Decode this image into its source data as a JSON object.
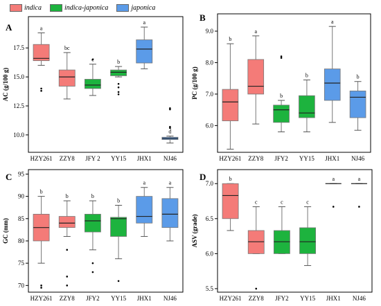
{
  "legend": {
    "items": [
      {
        "label": "indica",
        "color": "#F47B78"
      },
      {
        "label": "indica-japonica",
        "color": "#1DB33E"
      },
      {
        "label": "japonica",
        "color": "#5B9BE8"
      }
    ]
  },
  "chart_data": [
    {
      "type": "box",
      "panel": "A",
      "ylabel": "AC (g/100 g)",
      "ylim": [
        8.5,
        20.2
      ],
      "yticks": [
        10.0,
        12.5,
        15.0,
        17.5
      ],
      "ytick_labels": [
        "10.0",
        "12.5",
        "15.0",
        "17.5"
      ],
      "categories": [
        "HZY261",
        "ZZY8",
        "JFY 2",
        "YY15",
        "JHX1",
        "NJ46"
      ],
      "groups": [
        "indica",
        "indica",
        "indica-japonica",
        "indica-japonica",
        "japonica",
        "japonica"
      ],
      "boxes": [
        {
          "min": 16.0,
          "q1": 16.4,
          "median": 16.6,
          "q3": 17.8,
          "max": 18.8,
          "outliers": [
            14.0,
            13.8
          ]
        },
        {
          "min": 13.1,
          "q1": 14.2,
          "median": 15.0,
          "q3": 15.6,
          "max": 17.1,
          "outliers": []
        },
        {
          "min": 13.4,
          "q1": 14.0,
          "median": 14.3,
          "q3": 14.8,
          "max": 16.1,
          "outliers": [
            16.5
          ]
        },
        {
          "min": 15.0,
          "q1": 15.1,
          "median": 15.4,
          "q3": 15.6,
          "max": 15.9,
          "outliers": [
            14.4,
            14.1,
            13.7,
            13.5
          ]
        },
        {
          "min": 15.7,
          "q1": 16.2,
          "median": 17.4,
          "q3": 18.2,
          "max": 19.3,
          "outliers": []
        },
        {
          "min": 9.3,
          "q1": 9.6,
          "median": 9.7,
          "q3": 9.8,
          "max": 9.9,
          "outliers": [
            12.3,
            12.2,
            10.7,
            10.6
          ]
        }
      ],
      "letters": [
        "a",
        "bc",
        "c",
        "b",
        "a",
        "d"
      ]
    },
    {
      "type": "box",
      "panel": "B",
      "ylabel": "PC (g/100 g)",
      "ylim": [
        5.15,
        9.55
      ],
      "yticks": [
        6.0,
        7.0,
        8.0,
        9.0
      ],
      "ytick_labels": [
        "6.0",
        "7.0",
        "8.0",
        "9.0"
      ],
      "categories": [
        "HZY261",
        "ZZY8",
        "JFY2",
        "YY15",
        "JHX1",
        "NJ46"
      ],
      "groups": [
        "indica",
        "indica",
        "indica-japonica",
        "indica-japonica",
        "japonica",
        "japonica"
      ],
      "boxes": [
        {
          "min": 5.25,
          "q1": 6.15,
          "median": 6.75,
          "q3": 7.15,
          "max": 8.6,
          "outliers": []
        },
        {
          "min": 6.05,
          "q1": 7.0,
          "median": 7.25,
          "q3": 8.1,
          "max": 8.85,
          "outliers": []
        },
        {
          "min": 5.8,
          "q1": 6.1,
          "median": 6.5,
          "q3": 6.65,
          "max": 6.8,
          "outliers": [
            8.2,
            8.15
          ]
        },
        {
          "min": 5.8,
          "q1": 6.25,
          "median": 6.4,
          "q3": 6.95,
          "max": 7.45,
          "outliers": []
        },
        {
          "min": 6.1,
          "q1": 6.8,
          "median": 7.35,
          "q3": 7.8,
          "max": 9.15,
          "outliers": []
        },
        {
          "min": 5.85,
          "q1": 6.25,
          "median": 6.9,
          "q3": 7.1,
          "max": 7.4,
          "outliers": []
        }
      ],
      "letters": [
        "b",
        "a",
        "b",
        "b",
        "a",
        "b"
      ]
    },
    {
      "type": "box",
      "panel": "C",
      "ylabel": "GC (mm)",
      "ylim": [
        68.5,
        96.0
      ],
      "yticks": [
        70,
        75,
        80,
        85,
        90,
        95
      ],
      "ytick_labels": [
        "70",
        "75",
        "80",
        "85",
        "90",
        "95"
      ],
      "categories": [
        "HZY261",
        "ZZY8",
        "JFY2",
        "YY15",
        "JHX1",
        "NJ46"
      ],
      "groups": [
        "indica",
        "indica",
        "indica-japonica",
        "indica-japonica",
        "japonica",
        "japonica"
      ],
      "boxes": [
        {
          "min": 75.0,
          "q1": 80.0,
          "median": 83.0,
          "q3": 86.0,
          "max": 90.0,
          "outliers": [
            70.0,
            69.5
          ]
        },
        {
          "min": 81.0,
          "q1": 83.0,
          "median": 84.0,
          "q3": 85.5,
          "max": 89.0,
          "outliers": [
            78.0,
            72.0,
            70.0
          ]
        },
        {
          "min": 78.0,
          "q1": 82.0,
          "median": 84.5,
          "q3": 86.0,
          "max": 89.0,
          "outliers": [
            75.0,
            73.0
          ]
        },
        {
          "min": 76.0,
          "q1": 81.0,
          "median": 85.0,
          "q3": 85.3,
          "max": 88.0,
          "outliers": [
            71.0
          ]
        },
        {
          "min": 81.0,
          "q1": 84.0,
          "median": 85.5,
          "q3": 90.0,
          "max": 92.0,
          "outliers": []
        },
        {
          "min": 80.0,
          "q1": 83.0,
          "median": 86.0,
          "q3": 89.5,
          "max": 92.0,
          "outliers": []
        }
      ],
      "letters": [
        "b",
        "b",
        "b",
        "b",
        "a",
        "a"
      ]
    },
    {
      "type": "box",
      "panel": "D",
      "ylabel": "ASV (grade)",
      "ylim": [
        5.45,
        7.2
      ],
      "yticks": [
        5.5,
        6.0,
        6.5,
        7.0
      ],
      "ytick_labels": [
        "5.5",
        "6.0",
        "6.5",
        "7.0"
      ],
      "categories": [
        "HZY261",
        "ZZY8",
        "JFY2",
        "YY15",
        "JHX1",
        "NJ46"
      ],
      "groups": [
        "indica",
        "indica",
        "indica-japonica",
        "indica-japonica",
        "japonica",
        "japonica"
      ],
      "boxes": [
        {
          "min": 6.33,
          "q1": 6.5,
          "median": 6.83,
          "q3": 7.0,
          "max": 7.0,
          "outliers": []
        },
        {
          "min": 6.0,
          "q1": 6.0,
          "median": 6.17,
          "q3": 6.33,
          "max": 6.67,
          "outliers": [
            5.5
          ]
        },
        {
          "min": 6.0,
          "q1": 6.0,
          "median": 6.17,
          "q3": 6.33,
          "max": 6.67,
          "outliers": []
        },
        {
          "min": 5.83,
          "q1": 6.0,
          "median": 6.17,
          "q3": 6.37,
          "max": 6.67,
          "outliers": []
        },
        {
          "min": 7.0,
          "q1": 7.0,
          "median": 7.0,
          "q3": 7.0,
          "max": 7.0,
          "outliers": [
            6.67
          ]
        },
        {
          "min": 7.0,
          "q1": 7.0,
          "median": 7.0,
          "q3": 7.0,
          "max": 7.0,
          "outliers": [
            6.67
          ]
        }
      ],
      "letters": [
        "b",
        "c",
        "c",
        "c",
        "a",
        "a"
      ]
    }
  ]
}
